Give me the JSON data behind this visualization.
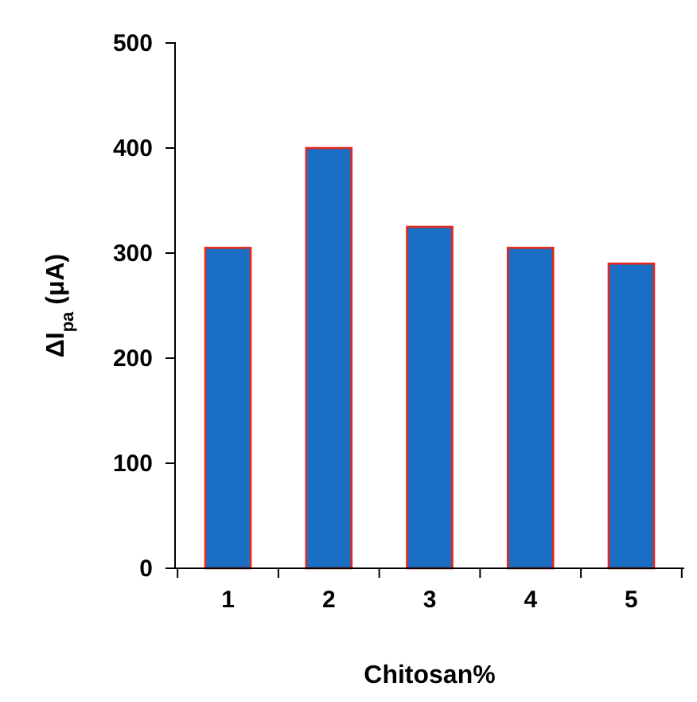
{
  "chart_data": {
    "type": "bar",
    "xlabel": "Chitosan%",
    "ylabel": "ΔI$_{pa}$ (μA)",
    "categories": [
      "1",
      "2",
      "3",
      "4",
      "5"
    ],
    "values": [
      305,
      400,
      325,
      305,
      290
    ],
    "color": "#1a6fc4",
    "ylim": [
      0,
      500
    ],
    "yticks": [
      0,
      100,
      200,
      300,
      400,
      500
    ],
    "grid": false
  }
}
